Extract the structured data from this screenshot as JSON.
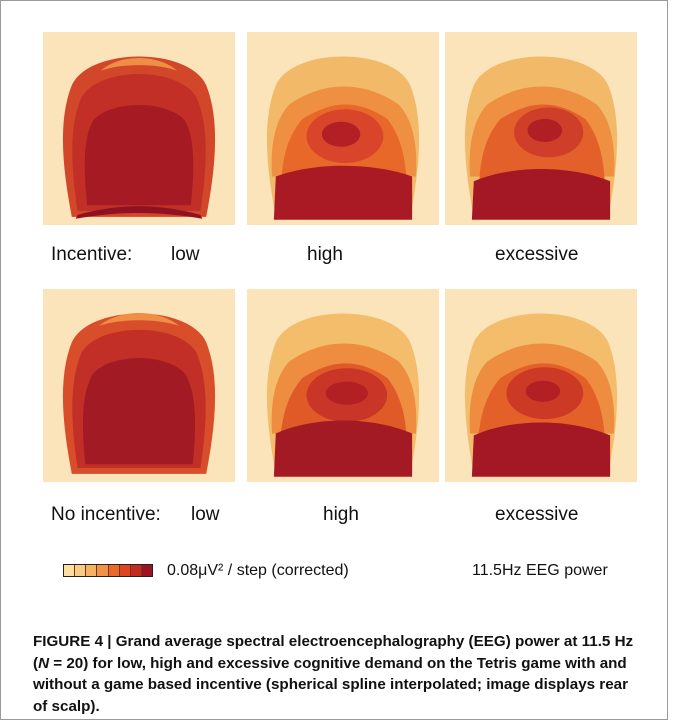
{
  "panels": {
    "row1": {
      "row_label": "Incentive:",
      "labels": [
        "low",
        "high",
        "excessive"
      ]
    },
    "row2": {
      "row_label": "No incentive:",
      "labels": [
        "low",
        "high",
        "excessive"
      ]
    }
  },
  "legend": {
    "colors": [
      "#fbe0a2",
      "#f8cc84",
      "#f5b264",
      "#f19246",
      "#ea6a2a",
      "#de4420",
      "#c42a20",
      "#9c1422"
    ],
    "scale_text": "0.08μV² / step (corrected)",
    "measure_text": "11.5Hz EEG power"
  },
  "caption": {
    "label": "FIGURE 4 | ",
    "text_before": "Grand average spectral electroencephalography (EEG) power at 11.5 Hz (",
    "n_var": "N",
    "text_after": " = 20) for low, high and excessive cognitive demand on the Tetris game with and without a game based incentive (spherical spline interpolated; image displays rear of scalp)."
  }
}
